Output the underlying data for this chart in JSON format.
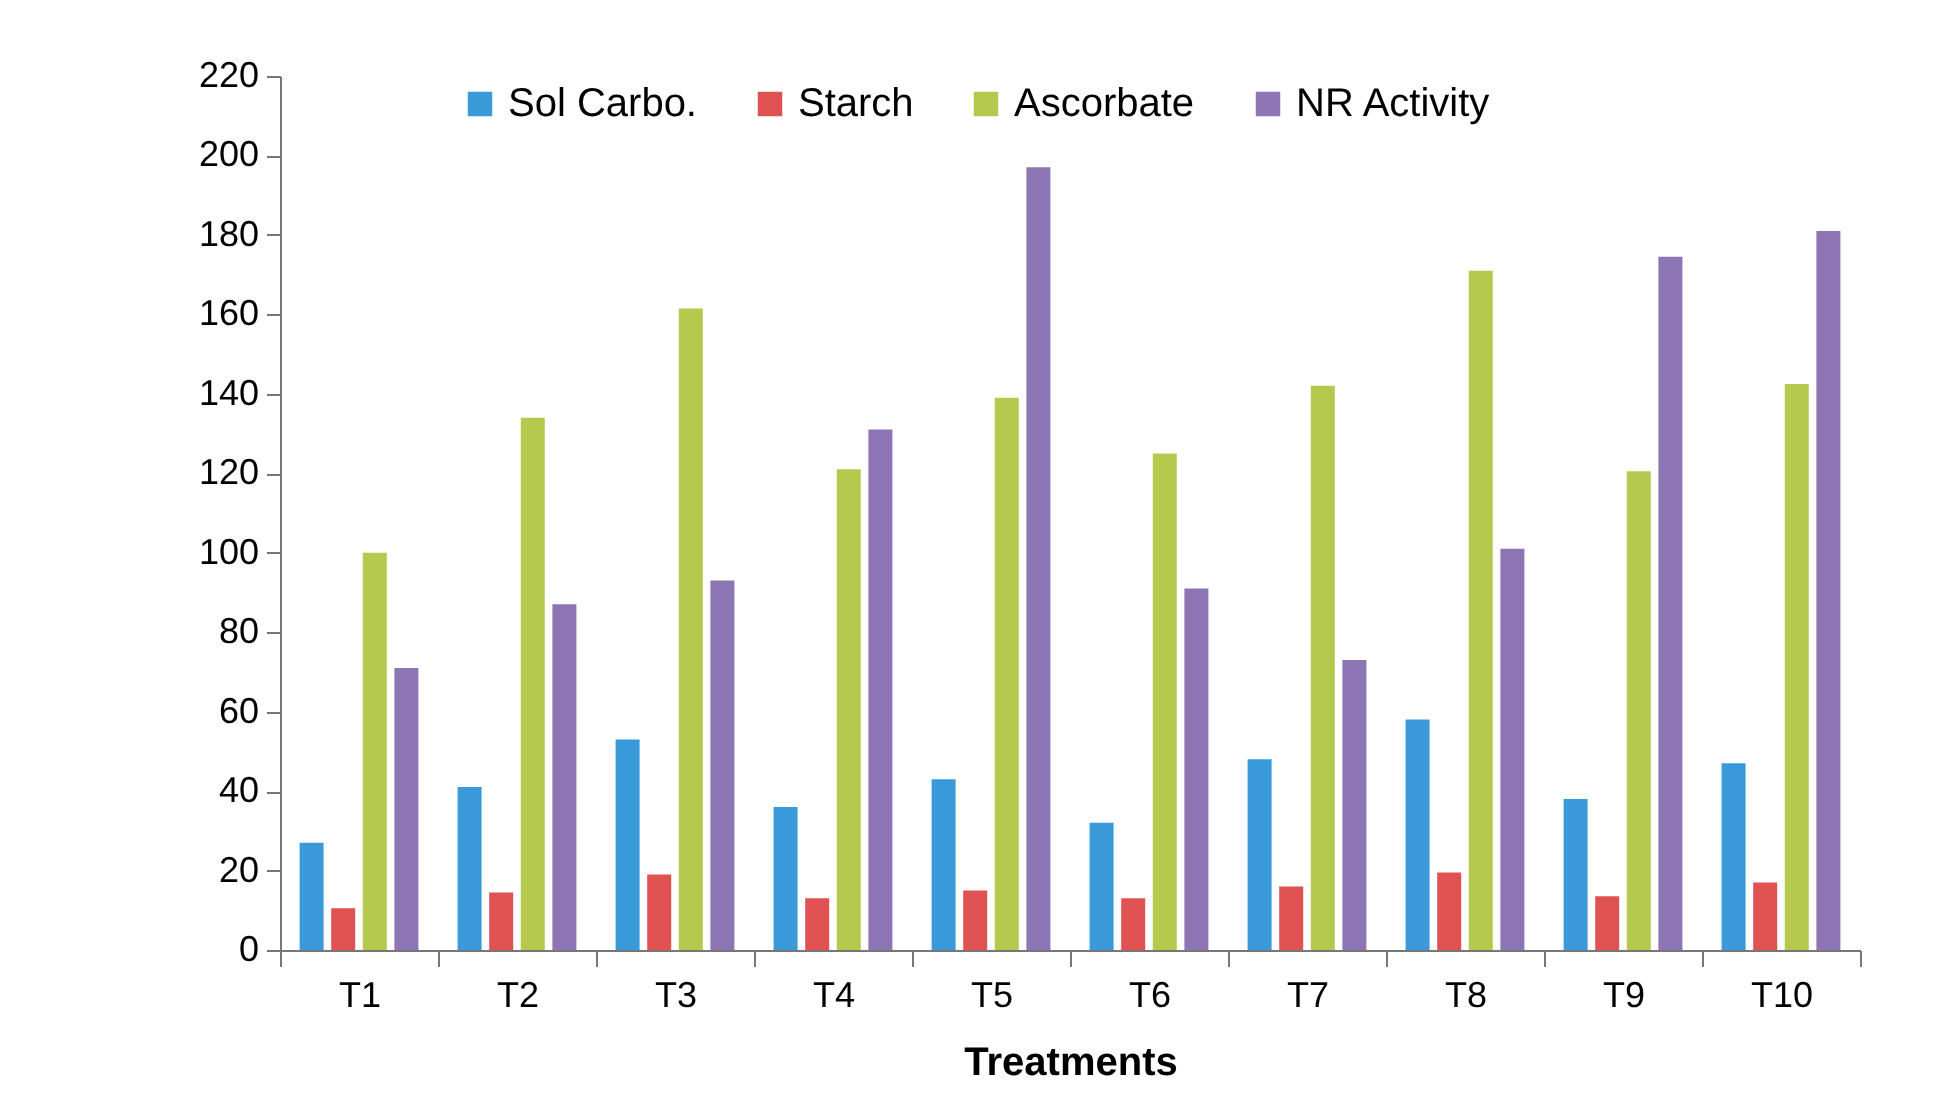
{
  "chart_data": {
    "type": "bar",
    "xlabel": "Treatments",
    "categories": [
      "T1",
      "T2",
      "T3",
      "T4",
      "T5",
      "T6",
      "T7",
      "T8",
      "T9",
      "T10"
    ],
    "series": [
      {
        "name": "Sol Carbo.",
        "color": "#3a9ad9",
        "values": [
          27,
          41,
          53,
          36,
          43,
          32,
          48,
          58,
          38,
          47
        ]
      },
      {
        "name": "Starch",
        "color": "#e05252",
        "values": [
          10.5,
          14.5,
          19,
          13,
          15,
          13,
          16,
          19.5,
          13.5,
          17
        ]
      },
      {
        "name": "Ascorbate",
        "color": "#b5c94f",
        "values": [
          100,
          134,
          161.5,
          121,
          139,
          125,
          142,
          171,
          120.5,
          142.5
        ]
      },
      {
        "name": "NR Activity",
        "color": "#8c74b5",
        "values": [
          71,
          87,
          93,
          131,
          197,
          91,
          73,
          101,
          174.5,
          181
        ]
      }
    ],
    "ylim": [
      0,
      220
    ],
    "yticks": [
      0,
      20,
      40,
      60,
      80,
      100,
      120,
      140,
      160,
      180,
      200,
      220
    ],
    "grid": false,
    "legend": "top"
  }
}
